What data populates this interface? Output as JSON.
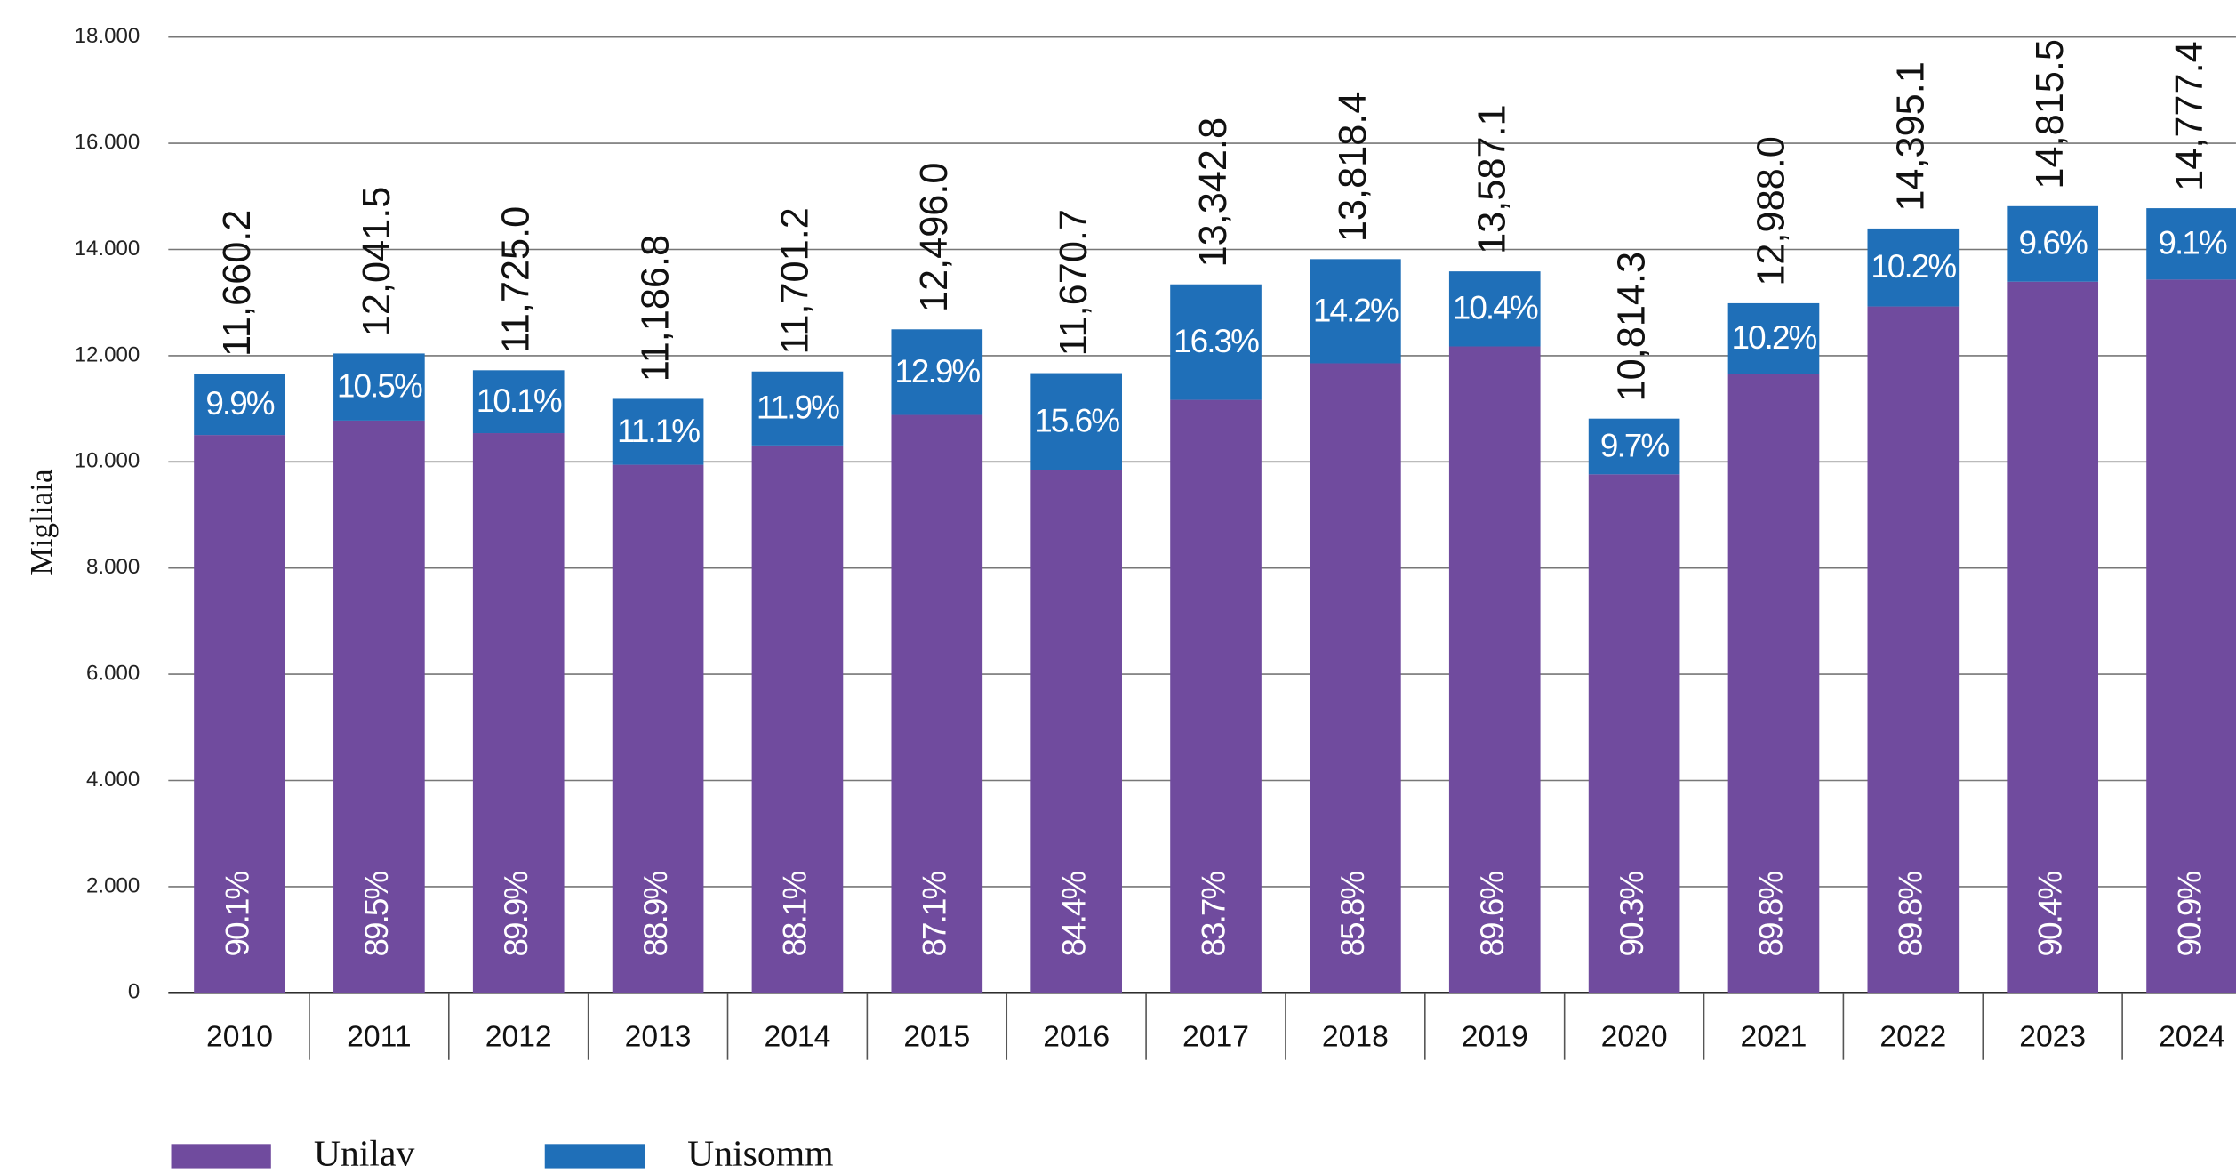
{
  "chart_data": {
    "type": "stacked_bar",
    "y_label": "Migliaia",
    "categories": [
      "2010",
      "2011",
      "2012",
      "2013",
      "2014",
      "2015",
      "2016",
      "2017",
      "2018",
      "2019",
      "2020",
      "2021",
      "2022",
      "2023",
      "2024"
    ],
    "series": [
      {
        "name": "Unilav",
        "color": "#704b9e",
        "values": [
          10505.8,
          10777.1,
          10540.8,
          9945.1,
          10308.8,
          10884.0,
          9850.1,
          11167.9,
          11856.2,
          12174.0,
          9765.3,
          11663.2,
          12926.8,
          13393.2,
          13432.7
        ],
        "shares": [
          90.1,
          89.5,
          89.9,
          88.9,
          88.1,
          87.1,
          84.4,
          83.7,
          85.8,
          89.6,
          90.3,
          89.8,
          89.8,
          90.4,
          90.9
        ],
        "share_labels": [
          "90.1%",
          "89.5%",
          "89.9%",
          "88.9%",
          "88.1%",
          "87.1%",
          "84.4%",
          "83.7%",
          "85.8%",
          "89.6%",
          "90.3%",
          "89.8%",
          "89.8%",
          "90.4%",
          "90.9%"
        ]
      },
      {
        "name": "Unisomm",
        "color": "#1f6fb8",
        "values": [
          1154.4,
          1264.4,
          1184.2,
          1241.7,
          1392.4,
          1612.0,
          1820.6,
          2174.9,
          1962.2,
          1413.1,
          1049.0,
          1324.8,
          1468.3,
          1422.3,
          1344.7
        ],
        "shares": [
          9.9,
          10.5,
          10.1,
          11.1,
          11.9,
          12.9,
          15.6,
          16.3,
          14.2,
          10.4,
          9.7,
          10.2,
          10.2,
          9.6,
          9.1
        ],
        "share_labels": [
          "9.9%",
          "10.5%",
          "10.1%",
          "11.1%",
          "11.9%",
          "12.9%",
          "15.6%",
          "16.3%",
          "14.2%",
          "10.4%",
          "9.7%",
          "10.2%",
          "10.2%",
          "9.6%",
          "9.1%"
        ]
      }
    ],
    "totals": [
      11660.2,
      12041.5,
      11725.0,
      11186.8,
      11701.2,
      12496.0,
      11670.7,
      13342.8,
      13818.4,
      13587.1,
      10814.3,
      12988.0,
      14395.1,
      14815.5,
      14777.4
    ],
    "total_labels": [
      "11,660.2",
      "12,041.5",
      "11,725.0",
      "11,186.8",
      "11,701.2",
      "12,496.0",
      "11,670.7",
      "13,342.8",
      "13,818.4",
      "13,587.1",
      "10,814.3",
      "12,988.0",
      "14,395.1",
      "14,815.5",
      "14,777.4"
    ],
    "ylim": [
      0,
      18000
    ],
    "yticks": [
      0,
      {
        "value": 2000,
        "label": "2.000"
      },
      {
        "value": 4000,
        "label": "4.000"
      },
      {
        "value": 6000,
        "label": "6.000"
      },
      {
        "value": 8000,
        "label": "8.000"
      },
      {
        "value": 10000,
        "label": "10.000"
      },
      {
        "value": 12000,
        "label": "12.000"
      },
      {
        "value": 14000,
        "label": "14.000"
      },
      {
        "value": 16000,
        "label": "16.000"
      },
      {
        "value": 18000,
        "label": "18.000"
      }
    ],
    "grid": true,
    "legend": "bottom"
  }
}
